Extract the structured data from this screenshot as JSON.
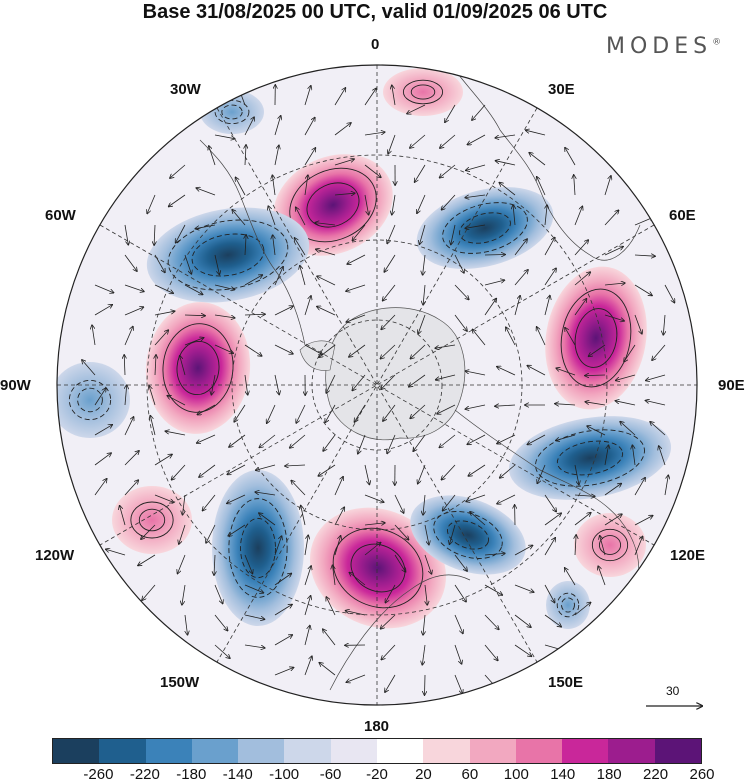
{
  "title": "Base 31/08/2025 00 UTC, valid 01/09/2025 06 UTC",
  "brand": "MODES",
  "brand_mark": "®",
  "longitude_labels": {
    "top": "0",
    "top_right": "30E",
    "right_upper": "60E",
    "right": "90E",
    "right_lower": "120E",
    "bottom_right": "150E",
    "bottom": "180",
    "bottom_left": "150W",
    "left_lower": "120W",
    "left": "90W",
    "left_upper": "60W",
    "top_left": "30W"
  },
  "vector_scale_label": "30",
  "colorbar": {
    "labels": [
      "-260",
      "-220",
      "-180",
      "-140",
      "-100",
      "-60",
      "-20",
      "20",
      "60",
      "100",
      "140",
      "180",
      "220",
      "260"
    ],
    "colors": [
      "#1b3f5e",
      "#1f5f8e",
      "#3b82b9",
      "#6aa0cd",
      "#a2bedd",
      "#cdd7ea",
      "#e8e6f2",
      "#ffffff",
      "#f8d6dc",
      "#f2a8c0",
      "#e874a8",
      "#c9279a",
      "#9c1d8e",
      "#5c1477"
    ]
  },
  "anomaly_centers": [
    {
      "sign": "positive",
      "value": 240
    },
    {
      "sign": "negative",
      "value": -250
    },
    {
      "sign": "negative",
      "value": -160
    },
    {
      "sign": "positive",
      "value": 200
    },
    {
      "sign": "positive",
      "value": 210
    },
    {
      "sign": "negative",
      "value": -200
    },
    {
      "sign": "negative",
      "value": -170
    },
    {
      "sign": "positive",
      "value": 190
    },
    {
      "sign": "negative",
      "value": -140
    },
    {
      "sign": "positive",
      "value": 90
    },
    {
      "sign": "negative",
      "value": -90
    },
    {
      "sign": "positive",
      "value": 60
    },
    {
      "sign": "negative",
      "value": -80
    },
    {
      "sign": "positive",
      "value": 60
    },
    {
      "sign": "negative",
      "value": -60
    }
  ]
}
